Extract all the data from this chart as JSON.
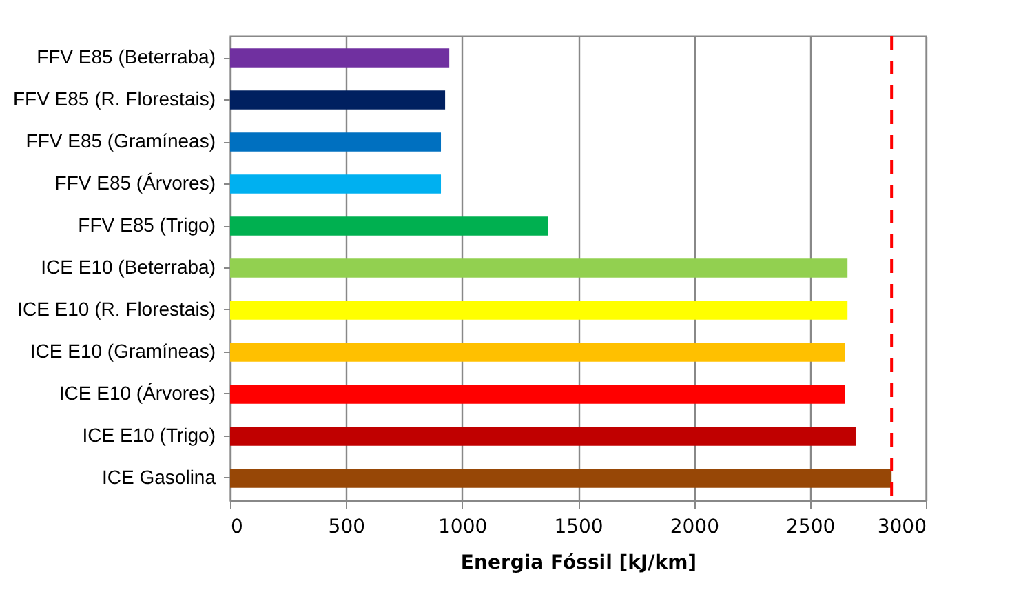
{
  "chart_data": {
    "type": "bar",
    "orientation": "horizontal",
    "xlabel": "Energia Fóssil [kJ/km]",
    "categories": [
      "FFV E85 (Beterraba)",
      "FFV E85 (R. Florestais)",
      "FFV E85 (Gramíneas)",
      "FFV E85 (Árvores)",
      "FFV E85 (Trigo)",
      "ICE E10 (Beterraba)",
      "ICE E10 (R. Florestais)",
      "ICE E10 (Gramíneas)",
      "ICE E10 (Árvores)",
      "ICE E10 (Trigo)",
      "ICE Gasolina"
    ],
    "values": [
      945,
      927,
      909,
      909,
      1372,
      2662,
      2662,
      2650,
      2650,
      2697,
      2852
    ],
    "colors": [
      "#7030a0",
      "#002060",
      "#0070c0",
      "#00b0f0",
      "#00b050",
      "#92d050",
      "#ffff00",
      "#ffc000",
      "#ff0000",
      "#c00000",
      "#974706"
    ],
    "xlim": [
      0,
      3000
    ],
    "xticks": [
      0,
      500,
      1000,
      1500,
      2000,
      2500,
      3000
    ],
    "grid": "x",
    "ref_lines": [
      {
        "axis": "x",
        "value": 2852,
        "color": "#ff0000",
        "line_style": "dashed"
      }
    ]
  }
}
